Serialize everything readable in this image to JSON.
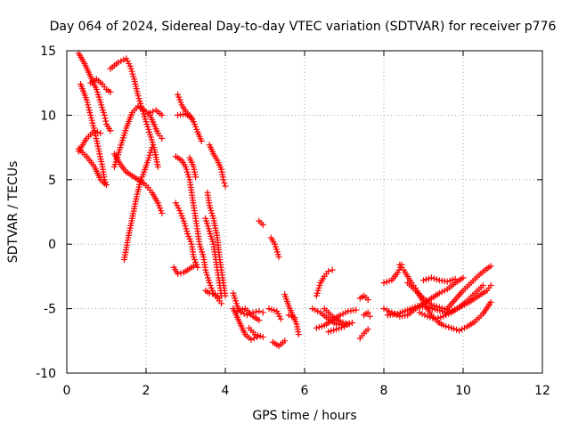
{
  "chart_data": {
    "type": "scatter",
    "title": "Day 064 of 2024, Sidereal Day-to-day VTEC variation (SDTVAR) for receiver p776",
    "xlabel": "GPS time / hours",
    "ylabel": "SDTVAR / TECUs",
    "xlim": [
      0,
      12
    ],
    "ylim": [
      -10,
      15
    ],
    "xticks": [
      0,
      2,
      4,
      6,
      8,
      10,
      12
    ],
    "yticks": [
      -10,
      -5,
      0,
      5,
      10,
      15
    ],
    "grid": true,
    "marker": "+",
    "color": "#ff0000",
    "series": [
      {
        "points": [
          [
            0.3,
            14.8
          ],
          [
            0.45,
            14.0
          ],
          [
            0.6,
            13.0
          ],
          [
            0.75,
            12.0
          ],
          [
            0.85,
            11.0
          ],
          [
            0.95,
            10.0
          ],
          [
            1.0,
            9.3
          ],
          [
            1.1,
            8.8
          ]
        ]
      },
      {
        "points": [
          [
            0.35,
            12.4
          ],
          [
            0.5,
            11.2
          ],
          [
            0.6,
            10.0
          ],
          [
            0.7,
            8.8
          ],
          [
            0.8,
            7.4
          ],
          [
            0.9,
            6.0
          ],
          [
            0.95,
            5.0
          ],
          [
            1.0,
            4.6
          ]
        ]
      },
      {
        "points": [
          [
            0.3,
            7.2
          ],
          [
            0.5,
            8.2
          ],
          [
            0.7,
            8.8
          ],
          [
            0.85,
            8.6
          ]
        ]
      },
      {
        "points": [
          [
            0.3,
            7.4
          ],
          [
            0.5,
            6.8
          ],
          [
            0.7,
            6.0
          ],
          [
            0.85,
            5.0
          ],
          [
            0.95,
            4.7
          ]
        ]
      },
      {
        "points": [
          [
            0.6,
            12.5
          ],
          [
            0.75,
            12.8
          ],
          [
            0.9,
            12.4
          ],
          [
            1.0,
            12.0
          ],
          [
            1.1,
            11.8
          ]
        ]
      },
      {
        "points": [
          [
            1.1,
            13.6
          ],
          [
            1.3,
            14.1
          ],
          [
            1.5,
            14.4
          ],
          [
            1.6,
            13.8
          ],
          [
            1.7,
            12.8
          ],
          [
            1.8,
            11.5
          ],
          [
            1.9,
            10.5
          ],
          [
            2.0,
            9.5
          ],
          [
            2.1,
            8.5
          ],
          [
            2.2,
            7.5
          ],
          [
            2.3,
            6.0
          ]
        ]
      },
      {
        "points": [
          [
            1.2,
            6.0
          ],
          [
            1.35,
            7.5
          ],
          [
            1.5,
            9.0
          ],
          [
            1.65,
            10.2
          ],
          [
            1.8,
            10.7
          ],
          [
            1.95,
            10.4
          ],
          [
            2.1,
            10.0
          ],
          [
            2.2,
            9.3
          ],
          [
            2.3,
            8.6
          ],
          [
            2.4,
            8.2
          ]
        ]
      },
      {
        "points": [
          [
            1.2,
            7.0
          ],
          [
            1.35,
            6.2
          ],
          [
            1.5,
            5.6
          ],
          [
            1.65,
            5.3
          ],
          [
            1.8,
            5.0
          ],
          [
            1.95,
            4.7
          ],
          [
            2.05,
            4.4
          ],
          [
            2.15,
            4.0
          ],
          [
            2.3,
            3.2
          ],
          [
            2.4,
            2.4
          ]
        ]
      },
      {
        "points": [
          [
            1.45,
            -1.2
          ],
          [
            1.55,
            0.5
          ],
          [
            1.65,
            2.0
          ],
          [
            1.75,
            3.5
          ],
          [
            1.85,
            4.8
          ],
          [
            1.95,
            5.6
          ],
          [
            2.05,
            6.5
          ],
          [
            2.15,
            7.5
          ]
        ]
      },
      {
        "points": [
          [
            2.1,
            10.2
          ],
          [
            2.25,
            10.4
          ],
          [
            2.4,
            10.0
          ]
        ]
      },
      {
        "points": [
          [
            2.8,
            11.6
          ],
          [
            2.9,
            10.8
          ],
          [
            3.0,
            10.3
          ],
          [
            3.1,
            10.0
          ],
          [
            3.2,
            9.5
          ],
          [
            3.3,
            8.7
          ],
          [
            3.4,
            8.0
          ]
        ]
      },
      {
        "points": [
          [
            2.8,
            10.0
          ],
          [
            3.0,
            10.1
          ],
          [
            3.15,
            9.8
          ]
        ]
      },
      {
        "points": [
          [
            2.75,
            6.8
          ],
          [
            2.9,
            6.5
          ],
          [
            3.0,
            6.0
          ],
          [
            3.1,
            5.0
          ],
          [
            3.15,
            4.0
          ],
          [
            3.2,
            3.0
          ],
          [
            3.25,
            2.0
          ],
          [
            3.3,
            1.0
          ],
          [
            3.35,
            0.0
          ],
          [
            3.45,
            -1.0
          ],
          [
            3.5,
            -2.0
          ],
          [
            3.6,
            -3.0
          ],
          [
            3.7,
            -3.8
          ],
          [
            3.8,
            -4.2
          ],
          [
            3.9,
            -4.6
          ]
        ]
      },
      {
        "points": [
          [
            2.75,
            3.2
          ],
          [
            2.85,
            2.6
          ],
          [
            2.95,
            1.8
          ],
          [
            3.05,
            0.8
          ],
          [
            3.15,
            0.0
          ],
          [
            3.2,
            -1.0
          ],
          [
            3.3,
            -1.8
          ]
        ]
      },
      {
        "points": [
          [
            2.7,
            -1.8
          ],
          [
            2.8,
            -2.3
          ],
          [
            2.95,
            -2.2
          ],
          [
            3.1,
            -1.9
          ],
          [
            3.2,
            -1.7
          ]
        ]
      },
      {
        "points": [
          [
            3.1,
            6.7
          ],
          [
            3.2,
            6.0
          ],
          [
            3.25,
            5.2
          ]
        ]
      },
      {
        "points": [
          [
            3.5,
            2.0
          ],
          [
            3.6,
            1.0
          ],
          [
            3.7,
            0.0
          ],
          [
            3.75,
            -1.0
          ],
          [
            3.8,
            -2.0
          ],
          [
            3.85,
            -3.0
          ],
          [
            3.9,
            -4.0
          ]
        ]
      },
      {
        "points": [
          [
            3.55,
            4.0
          ],
          [
            3.6,
            3.0
          ],
          [
            3.7,
            2.0
          ],
          [
            3.8,
            0.5
          ],
          [
            3.85,
            -1.0
          ],
          [
            3.9,
            -2.0
          ],
          [
            3.95,
            -3.0
          ],
          [
            4.0,
            -4.0
          ]
        ]
      },
      {
        "points": [
          [
            3.5,
            -3.6
          ],
          [
            3.6,
            -3.8
          ],
          [
            3.75,
            -3.9
          ],
          [
            3.85,
            -4.2
          ]
        ]
      },
      {
        "points": [
          [
            3.6,
            7.7
          ],
          [
            3.7,
            7.0
          ],
          [
            3.8,
            6.5
          ],
          [
            3.9,
            5.8
          ],
          [
            3.95,
            5.0
          ],
          [
            4.0,
            4.5
          ]
        ]
      },
      {
        "points": [
          [
            4.2,
            -3.8
          ],
          [
            4.3,
            -4.8
          ],
          [
            4.4,
            -5.3
          ],
          [
            4.55,
            -5.5
          ],
          [
            4.7,
            -5.3
          ],
          [
            4.85,
            -5.2
          ],
          [
            4.95,
            -5.3
          ]
        ]
      },
      {
        "points": [
          [
            4.2,
            -5.0
          ],
          [
            4.35,
            -6.0
          ],
          [
            4.5,
            -7.0
          ],
          [
            4.65,
            -7.4
          ],
          [
            4.8,
            -7.2
          ]
        ]
      },
      {
        "points": [
          [
            4.3,
            -5.2
          ],
          [
            4.5,
            -5.0
          ],
          [
            4.7,
            -5.6
          ],
          [
            4.85,
            -5.9
          ]
        ]
      },
      {
        "points": [
          [
            4.6,
            -6.5
          ],
          [
            4.75,
            -7.0
          ],
          [
            4.95,
            -7.2
          ]
        ]
      },
      {
        "points": [
          [
            4.85,
            1.8
          ],
          [
            4.95,
            1.5
          ]
        ]
      },
      {
        "points": [
          [
            5.15,
            0.5
          ],
          [
            5.25,
            0.0
          ],
          [
            5.35,
            -1.0
          ]
        ]
      },
      {
        "points": [
          [
            5.1,
            -5.0
          ],
          [
            5.3,
            -5.2
          ],
          [
            5.4,
            -5.8
          ]
        ]
      },
      {
        "points": [
          [
            5.2,
            -7.6
          ],
          [
            5.35,
            -7.9
          ],
          [
            5.5,
            -7.5
          ]
        ]
      },
      {
        "points": [
          [
            5.5,
            -3.9
          ],
          [
            5.6,
            -4.8
          ],
          [
            5.7,
            -5.5
          ],
          [
            5.8,
            -6.2
          ],
          [
            5.85,
            -7.0
          ]
        ]
      },
      {
        "points": [
          [
            5.6,
            -5.5
          ],
          [
            5.75,
            -5.7
          ]
        ]
      },
      {
        "points": [
          [
            6.3,
            -4.0
          ],
          [
            6.4,
            -3.0
          ],
          [
            6.5,
            -2.5
          ],
          [
            6.6,
            -2.1
          ],
          [
            6.7,
            -2.0
          ]
        ]
      },
      {
        "points": [
          [
            6.2,
            -5.0
          ],
          [
            6.4,
            -5.3
          ],
          [
            6.6,
            -5.8
          ],
          [
            6.8,
            -6.2
          ],
          [
            7.0,
            -6.3
          ],
          [
            7.2,
            -6.1
          ]
        ]
      },
      {
        "points": [
          [
            6.3,
            -6.5
          ],
          [
            6.5,
            -6.3
          ],
          [
            6.7,
            -5.9
          ],
          [
            6.9,
            -5.5
          ],
          [
            7.1,
            -5.2
          ],
          [
            7.3,
            -5.1
          ]
        ]
      },
      {
        "points": [
          [
            6.5,
            -5.0
          ],
          [
            6.7,
            -5.6
          ],
          [
            6.9,
            -6.0
          ],
          [
            7.1,
            -6.2
          ]
        ]
      },
      {
        "points": [
          [
            6.6,
            -6.8
          ],
          [
            6.8,
            -6.6
          ],
          [
            7.0,
            -6.4
          ]
        ]
      },
      {
        "points": [
          [
            7.4,
            -4.2
          ],
          [
            7.5,
            -4.0
          ],
          [
            7.6,
            -4.3
          ]
        ]
      },
      {
        "points": [
          [
            7.5,
            -5.5
          ],
          [
            7.6,
            -5.3
          ],
          [
            7.65,
            -5.6
          ]
        ]
      },
      {
        "points": [
          [
            7.4,
            -7.3
          ],
          [
            7.5,
            -6.9
          ],
          [
            7.6,
            -6.6
          ]
        ]
      },
      {
        "points": [
          [
            8.0,
            -3.0
          ],
          [
            8.2,
            -2.8
          ],
          [
            8.35,
            -2.2
          ],
          [
            8.45,
            -1.6
          ]
        ]
      },
      {
        "points": [
          [
            8.4,
            -1.6
          ],
          [
            8.5,
            -2.0
          ],
          [
            8.6,
            -2.5
          ],
          [
            8.7,
            -3.0
          ],
          [
            8.8,
            -3.4
          ],
          [
            8.9,
            -4.0
          ],
          [
            9.0,
            -4.5
          ],
          [
            9.1,
            -5.0
          ],
          [
            9.2,
            -5.5
          ],
          [
            9.35,
            -6.0
          ],
          [
            9.5,
            -6.3
          ],
          [
            9.7,
            -6.5
          ],
          [
            9.9,
            -6.7
          ],
          [
            10.1,
            -6.4
          ],
          [
            10.3,
            -6.0
          ],
          [
            10.5,
            -5.4
          ],
          [
            10.7,
            -4.5
          ]
        ]
      },
      {
        "points": [
          [
            8.0,
            -5.0
          ],
          [
            8.2,
            -5.3
          ],
          [
            8.4,
            -5.6
          ],
          [
            8.6,
            -5.5
          ],
          [
            8.8,
            -5.0
          ],
          [
            9.0,
            -4.6
          ],
          [
            9.2,
            -4.2
          ],
          [
            9.4,
            -3.8
          ],
          [
            9.6,
            -3.5
          ],
          [
            9.8,
            -3.0
          ],
          [
            10.0,
            -2.6
          ]
        ]
      },
      {
        "points": [
          [
            8.1,
            -5.5
          ],
          [
            8.35,
            -5.4
          ],
          [
            8.6,
            -5.1
          ],
          [
            8.85,
            -4.8
          ],
          [
            9.1,
            -4.9
          ],
          [
            9.35,
            -5.1
          ],
          [
            9.6,
            -5.3
          ],
          [
            9.85,
            -5.0
          ],
          [
            10.1,
            -4.6
          ],
          [
            10.35,
            -4.1
          ],
          [
            10.6,
            -3.6
          ],
          [
            10.7,
            -3.2
          ]
        ]
      },
      {
        "points": [
          [
            8.6,
            -3.0
          ],
          [
            8.8,
            -3.6
          ],
          [
            9.0,
            -4.2
          ],
          [
            9.2,
            -4.7
          ],
          [
            9.4,
            -4.9
          ],
          [
            9.6,
            -5.1
          ]
        ]
      },
      {
        "points": [
          [
            8.9,
            -5.3
          ],
          [
            9.1,
            -5.6
          ],
          [
            9.3,
            -5.8
          ],
          [
            9.5,
            -5.6
          ],
          [
            9.7,
            -5.3
          ],
          [
            9.9,
            -4.9
          ],
          [
            10.1,
            -4.4
          ],
          [
            10.3,
            -3.8
          ],
          [
            10.5,
            -3.2
          ]
        ]
      },
      {
        "points": [
          [
            9.6,
            -5.0
          ],
          [
            9.8,
            -4.3
          ],
          [
            10.0,
            -3.6
          ],
          [
            10.2,
            -3.0
          ],
          [
            10.4,
            -2.4
          ],
          [
            10.6,
            -1.9
          ],
          [
            10.7,
            -1.7
          ]
        ]
      },
      {
        "points": [
          [
            9.0,
            -2.8
          ],
          [
            9.2,
            -2.6
          ],
          [
            9.4,
            -2.8
          ],
          [
            9.6,
            -2.9
          ],
          [
            9.8,
            -2.7
          ]
        ]
      }
    ]
  }
}
